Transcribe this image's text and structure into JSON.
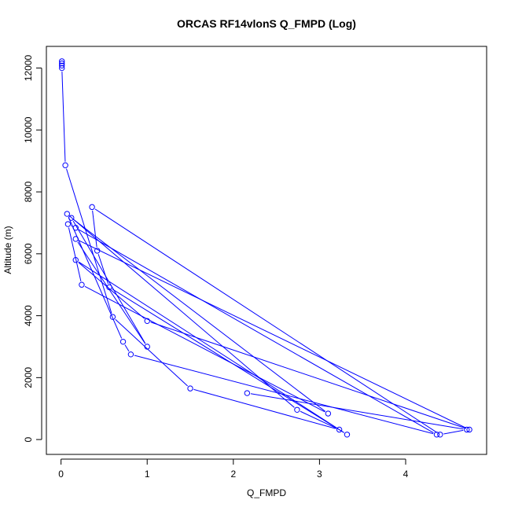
{
  "chart_data": {
    "type": "line",
    "title": "ORCAS RF14vlonS Q_FMPD (Log)",
    "xlabel": "Q_FMPD",
    "ylabel": "Altitude (m)",
    "xlim": [
      -0.17,
      4.94
    ],
    "ylim": [
      -480,
      12700
    ],
    "x_ticks": [
      0,
      1,
      2,
      3,
      4
    ],
    "y_ticks": [
      0,
      2000,
      4000,
      6000,
      8000,
      10000,
      12000
    ],
    "x_tick_labels": [
      "0",
      "1",
      "2",
      "3",
      "4"
    ],
    "y_tick_labels": [
      "0",
      "2000",
      "4000",
      "6000",
      "8000",
      "10000",
      "12000"
    ],
    "grid": false,
    "legend": "none",
    "series": [
      {
        "color": "#0000ff",
        "marker": "open-circle",
        "points": [
          {
            "x": 0.01,
            "y": 12220
          },
          {
            "x": 0.01,
            "y": 12150
          },
          {
            "x": 0.01,
            "y": 12080
          },
          {
            "x": 0.01,
            "y": 12000
          },
          {
            "x": 0.05,
            "y": 8860
          },
          {
            "x": 0.6,
            "y": 3960
          },
          {
            "x": 1.5,
            "y": 1650
          },
          {
            "x": 3.23,
            "y": 320
          },
          {
            "x": 2.74,
            "y": 960
          },
          {
            "x": 0.07,
            "y": 7290
          },
          {
            "x": 0.72,
            "y": 3160
          },
          {
            "x": 0.81,
            "y": 2750
          },
          {
            "x": 4.36,
            "y": 160
          },
          {
            "x": 0.17,
            "y": 6840
          },
          {
            "x": 0.08,
            "y": 6960
          },
          {
            "x": 0.24,
            "y": 5000
          },
          {
            "x": 3.1,
            "y": 840
          },
          {
            "x": 0.12,
            "y": 7160
          },
          {
            "x": 1.0,
            "y": 3000
          },
          {
            "x": 0.17,
            "y": 6480
          },
          {
            "x": 4.74,
            "y": 320
          },
          {
            "x": 1.0,
            "y": 3830
          },
          {
            "x": 0.17,
            "y": 5800
          },
          {
            "x": 3.32,
            "y": 160
          },
          {
            "x": 0.56,
            "y": 4920
          },
          {
            "x": 0.42,
            "y": 6100
          },
          {
            "x": 0.36,
            "y": 7510
          },
          {
            "x": 4.4,
            "y": 160
          },
          {
            "x": 4.71,
            "y": 320
          },
          {
            "x": 2.16,
            "y": 1500
          }
        ]
      }
    ]
  }
}
